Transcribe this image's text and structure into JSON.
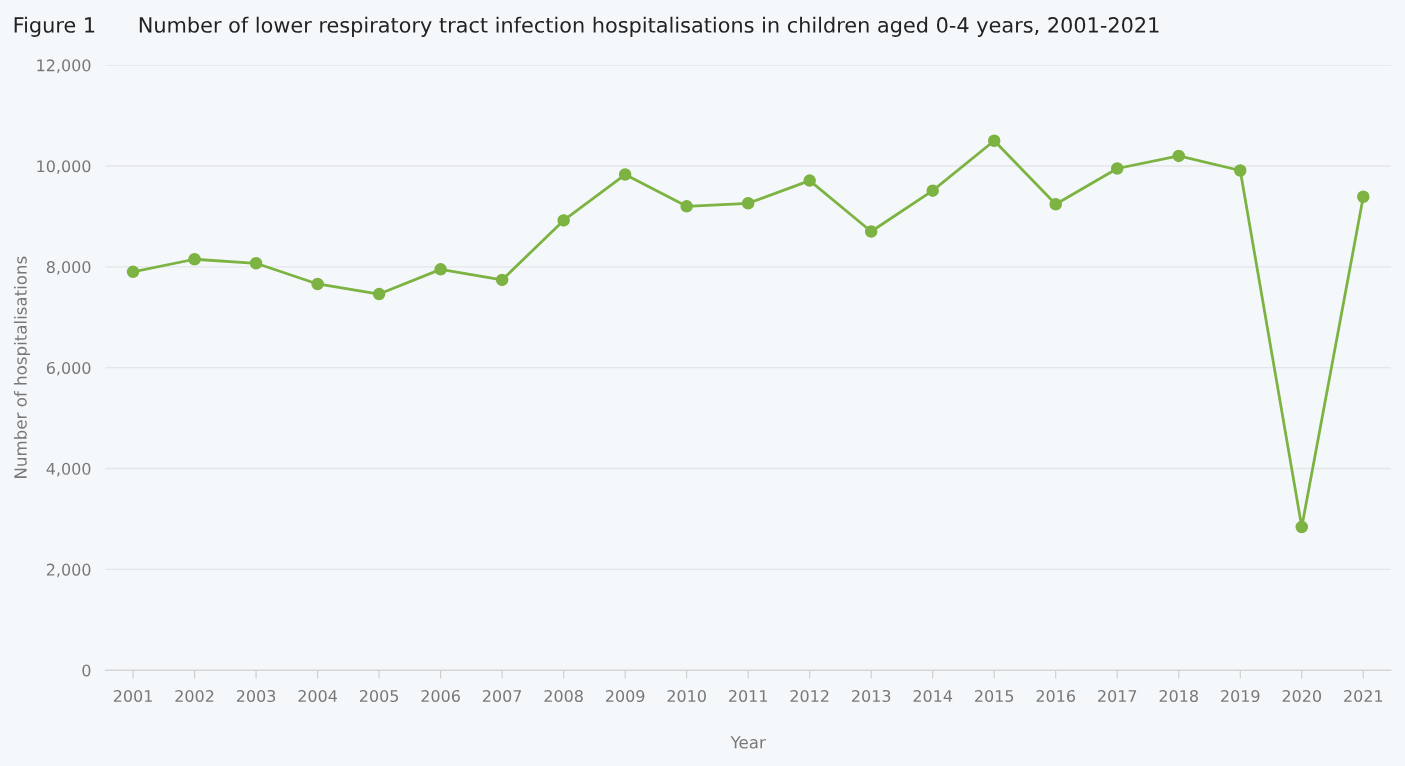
{
  "chart_data": {
    "type": "line",
    "title": "Figure 1  Number of lower respiratory tract infection hospitalisations in children aged 0-4 years, 2001-2021",
    "xlabel": "Year",
    "ylabel": "Number of hospitalisations",
    "categories": [
      "2001",
      "2002",
      "2003",
      "2004",
      "2005",
      "2006",
      "2007",
      "2008",
      "2009",
      "2010",
      "2011",
      "2012",
      "2013",
      "2014",
      "2015",
      "2016",
      "2017",
      "2018",
      "2019",
      "2020",
      "2021"
    ],
    "series": [
      {
        "color": "#7cb342",
        "values": [
          7900,
          8150,
          8070,
          7660,
          7460,
          7950,
          7740,
          8920,
          9830,
          9200,
          9260,
          9710,
          8700,
          9510,
          10500,
          9240,
          9950,
          10200,
          9910,
          2840,
          9390
        ]
      }
    ],
    "ylim": [
      0,
      12000
    ],
    "yticks": [
      {
        "value": 0,
        "label": "0"
      },
      {
        "value": 2000,
        "label": "2,000"
      },
      {
        "value": 4000,
        "label": "4,000"
      },
      {
        "value": 6000,
        "label": "6,000"
      },
      {
        "value": 8000,
        "label": "8,000"
      },
      {
        "value": 10000,
        "label": "10,000"
      },
      {
        "value": 12000,
        "label": "12,000"
      }
    ],
    "grid": "y",
    "marker": "circle",
    "line_style": "solid"
  }
}
